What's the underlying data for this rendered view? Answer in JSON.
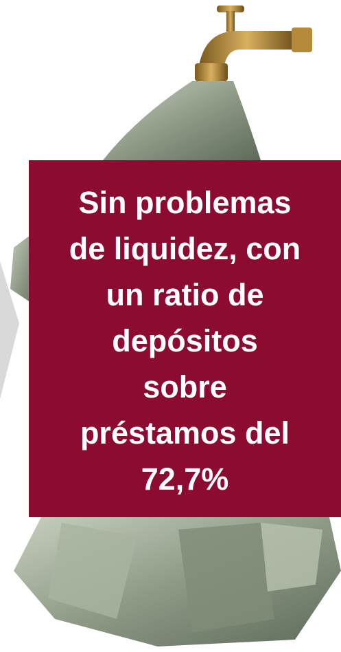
{
  "callout": {
    "lines": [
      "Sin problemas",
      "de liquidez, con",
      "un ratio de",
      "depósitos",
      "sobre",
      "préstamos del",
      "72,7%"
    ]
  }
}
